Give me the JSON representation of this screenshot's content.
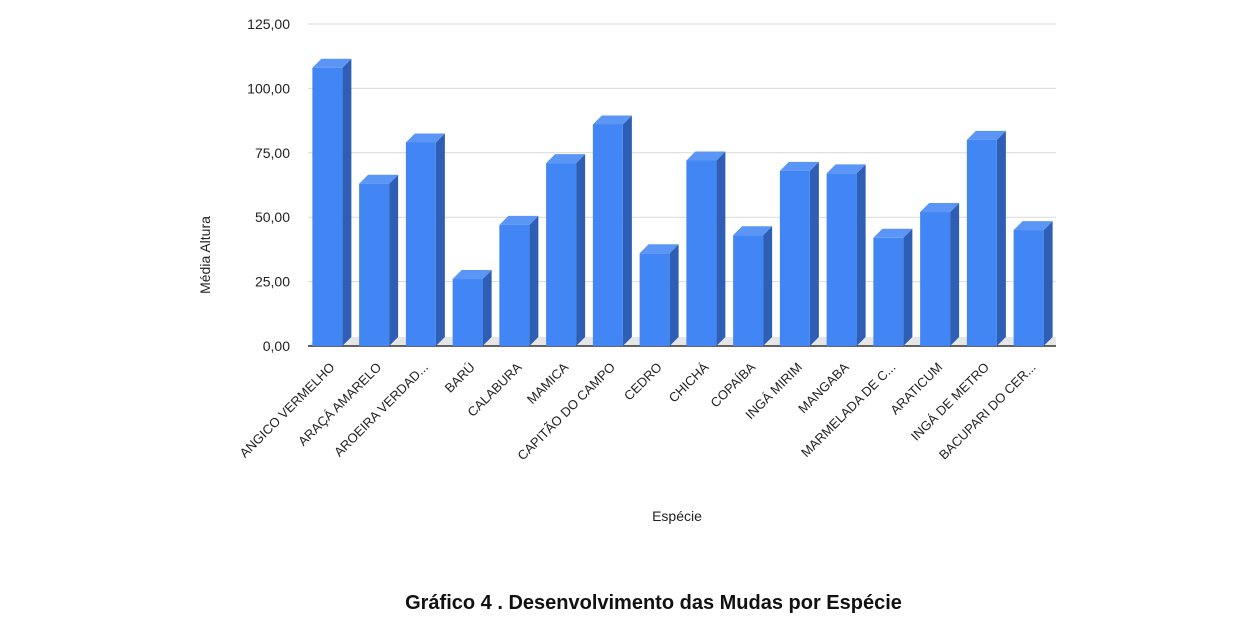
{
  "chart_data": {
    "type": "bar",
    "xlabel": "Espécie",
    "ylabel": "Média Altura",
    "ylim": [
      0,
      125
    ],
    "yticks": [
      "0,00",
      "25,00",
      "50,00",
      "75,00",
      "100,00",
      "125,00"
    ],
    "grid": true,
    "style_3d": true,
    "categories": [
      "ANGICO VERMELHO",
      "ARAÇÁ AMARELO",
      "AROEIRA VERDAD...",
      "BARÚ",
      "CALABURA",
      "MAMICA",
      "CAPITÃO DO CAMPO",
      "CEDRO",
      "CHICHÁ",
      "COPAÍBA",
      "INGÁ MIRIM",
      "MANGABA",
      "MARMELADA DE C...",
      "ARATICUM",
      "INGÁ DE METRO",
      "BACUPARI DO CER..."
    ],
    "values": [
      108,
      63,
      79,
      26,
      47,
      71,
      86,
      36,
      72,
      43,
      68,
      67,
      42,
      52,
      80,
      45
    ],
    "colors": {
      "bar_front": "#4285f4",
      "bar_top": "#5b95f5",
      "bar_side": "#2f5fb4",
      "grid": "#d9d9d9",
      "floor": "#e6e6e6"
    }
  },
  "caption": "Gráfico 4 . Desenvolvimento das Mudas por Espécie"
}
